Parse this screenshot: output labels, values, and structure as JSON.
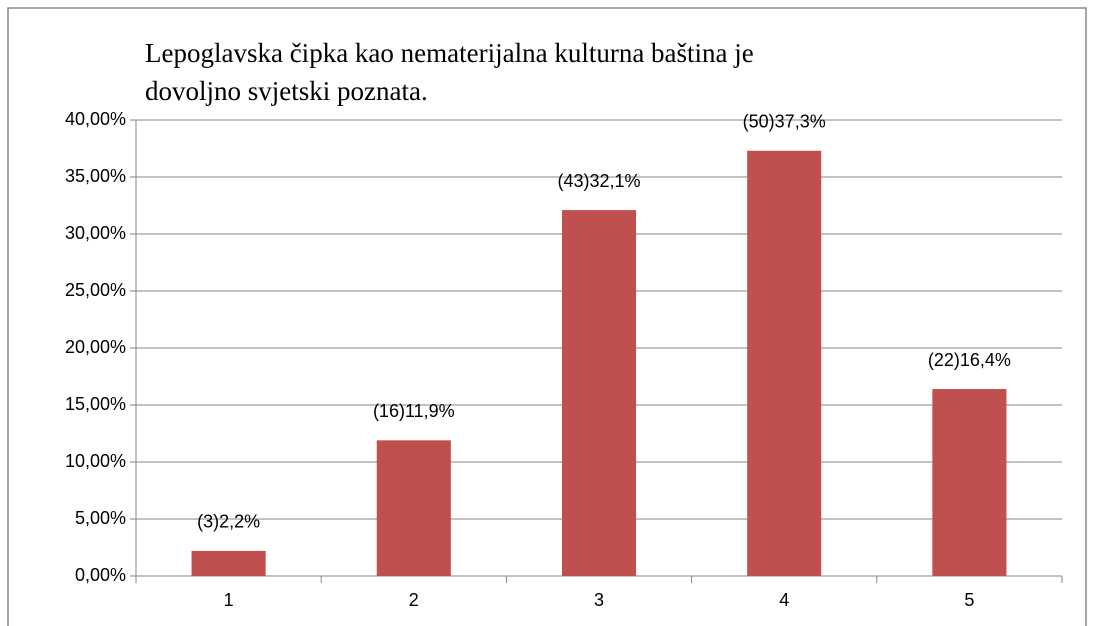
{
  "chart_data": {
    "type": "bar",
    "title": "Lepoglavska čipka kao nematerijalna kulturna baština je dovoljno svjetski poznata.",
    "categories": [
      "1",
      "2",
      "3",
      "4",
      "5"
    ],
    "values": [
      2.2,
      11.9,
      32.1,
      37.3,
      16.4
    ],
    "value_labels": [
      "(3)2,2%",
      "(16)11,9%",
      "(43)32,1%",
      "(50)37,3%",
      "(22)16,4%"
    ],
    "color": "#c0504d",
    "ylim": [
      0,
      40
    ],
    "yticks": [
      {
        "value": 0,
        "label": "0,00%"
      },
      {
        "value": 5,
        "label": "5,00%"
      },
      {
        "value": 10,
        "label": "10,00%"
      },
      {
        "value": 15,
        "label": "15,00%"
      },
      {
        "value": 20,
        "label": "20,00%"
      },
      {
        "value": 25,
        "label": "25,00%"
      },
      {
        "value": 30,
        "label": "30,00%"
      },
      {
        "value": 35,
        "label": "35,00%"
      },
      {
        "value": 40,
        "label": "40,00%"
      }
    ],
    "grid": true
  }
}
